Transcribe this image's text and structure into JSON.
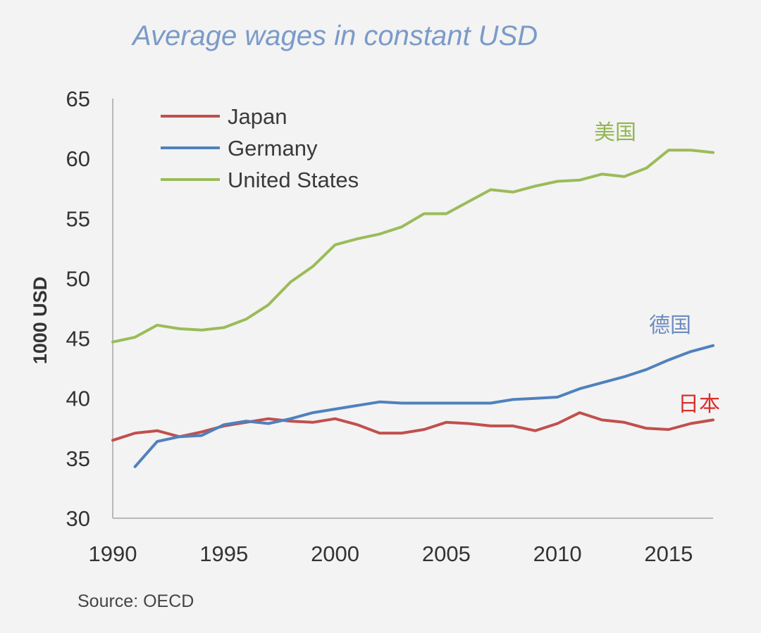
{
  "chart_data": {
    "type": "line",
    "title": "Average wages in constant USD",
    "ylabel": "1000 USD",
    "xlabel": "",
    "ylim": [
      30,
      65
    ],
    "yticks": [
      30,
      35,
      40,
      45,
      50,
      55,
      60,
      65
    ],
    "xlim": [
      1990,
      2017
    ],
    "xticks": [
      1990,
      1995,
      2000,
      2005,
      2010,
      2015
    ],
    "grid": false,
    "legend_position": "top-left",
    "source": "Source: OECD",
    "series": [
      {
        "name": "Japan",
        "color": "#c0504d",
        "annotation": "日本",
        "x": [
          1990,
          1991,
          1992,
          1993,
          1994,
          1995,
          1996,
          1997,
          1998,
          1999,
          2000,
          2001,
          2002,
          2003,
          2004,
          2005,
          2006,
          2007,
          2008,
          2009,
          2010,
          2011,
          2012,
          2013,
          2014,
          2015,
          2016,
          2017
        ],
        "values": [
          36.5,
          37.1,
          37.3,
          36.8,
          37.2,
          37.7,
          38.0,
          38.3,
          38.1,
          38.0,
          38.3,
          37.8,
          37.1,
          37.1,
          37.4,
          38.0,
          37.9,
          37.7,
          37.7,
          37.3,
          37.9,
          38.8,
          38.2,
          38.0,
          37.5,
          37.4,
          37.9,
          38.2
        ]
      },
      {
        "name": "Germany",
        "color": "#4f81bd",
        "annotation": "德国",
        "x": [
          1991,
          1992,
          1993,
          1994,
          1995,
          1996,
          1997,
          1998,
          1999,
          2000,
          2001,
          2002,
          2003,
          2004,
          2005,
          2006,
          2007,
          2008,
          2009,
          2010,
          2011,
          2012,
          2013,
          2014,
          2015,
          2016,
          2017
        ],
        "values": [
          34.3,
          36.4,
          36.8,
          36.9,
          37.8,
          38.1,
          37.9,
          38.3,
          38.8,
          39.1,
          39.4,
          39.7,
          39.6,
          39.6,
          39.6,
          39.6,
          39.6,
          39.9,
          40.0,
          40.1,
          40.8,
          41.3,
          41.8,
          42.4,
          43.2,
          43.9,
          44.4
        ]
      },
      {
        "name": "United States",
        "color": "#9bbb59",
        "annotation": "美国",
        "x": [
          1990,
          1991,
          1992,
          1993,
          1994,
          1995,
          1996,
          1997,
          1998,
          1999,
          2000,
          2001,
          2002,
          2003,
          2004,
          2005,
          2006,
          2007,
          2008,
          2009,
          2010,
          2011,
          2012,
          2013,
          2014,
          2015,
          2016,
          2017
        ],
        "values": [
          44.7,
          45.1,
          46.1,
          45.8,
          45.7,
          45.9,
          46.6,
          47.8,
          49.7,
          51.0,
          52.8,
          53.3,
          53.7,
          54.3,
          55.4,
          55.4,
          56.4,
          57.4,
          57.2,
          57.7,
          58.1,
          58.2,
          58.7,
          58.5,
          59.2,
          60.7,
          60.7,
          60.5
        ]
      }
    ]
  }
}
